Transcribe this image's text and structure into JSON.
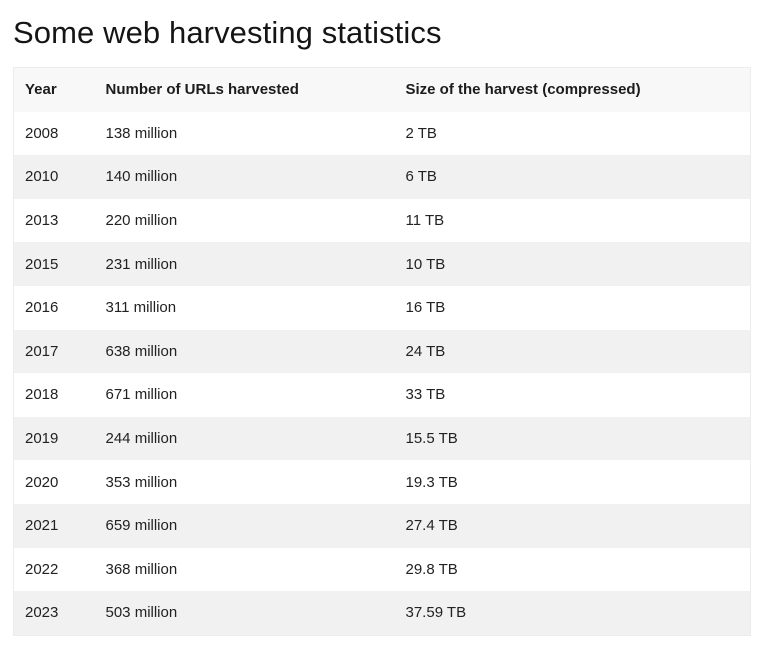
{
  "title": "Some web harvesting statistics",
  "table": {
    "headers": [
      "Year",
      "Number of URLs harvested",
      "Size of the harvest (compressed)"
    ],
    "rows": [
      [
        "2008",
        "138 million",
        "2 TB"
      ],
      [
        "2010",
        "140 million",
        "6 TB"
      ],
      [
        "2013",
        "220 million",
        "11 TB"
      ],
      [
        "2015",
        "231 million",
        "10 TB"
      ],
      [
        "2016",
        "311 million",
        "16 TB"
      ],
      [
        "2017",
        "638 million",
        "24 TB"
      ],
      [
        "2018",
        "671 million",
        "33 TB"
      ],
      [
        "2019",
        "244 million",
        "15.5 TB"
      ],
      [
        "2020",
        "353 million",
        "19.3 TB"
      ],
      [
        "2021",
        "659 million",
        "27.4 TB"
      ],
      [
        "2022",
        "368 million",
        "29.8 TB"
      ],
      [
        "2023",
        "503 million",
        "37.59 TB"
      ]
    ]
  },
  "colors": {
    "text": "#1a1a1a",
    "header_bg": "#f8f8f8",
    "row_stripe_bg": "#f1f1f1",
    "row_bg": "#ffffff",
    "border": "#ececec"
  }
}
